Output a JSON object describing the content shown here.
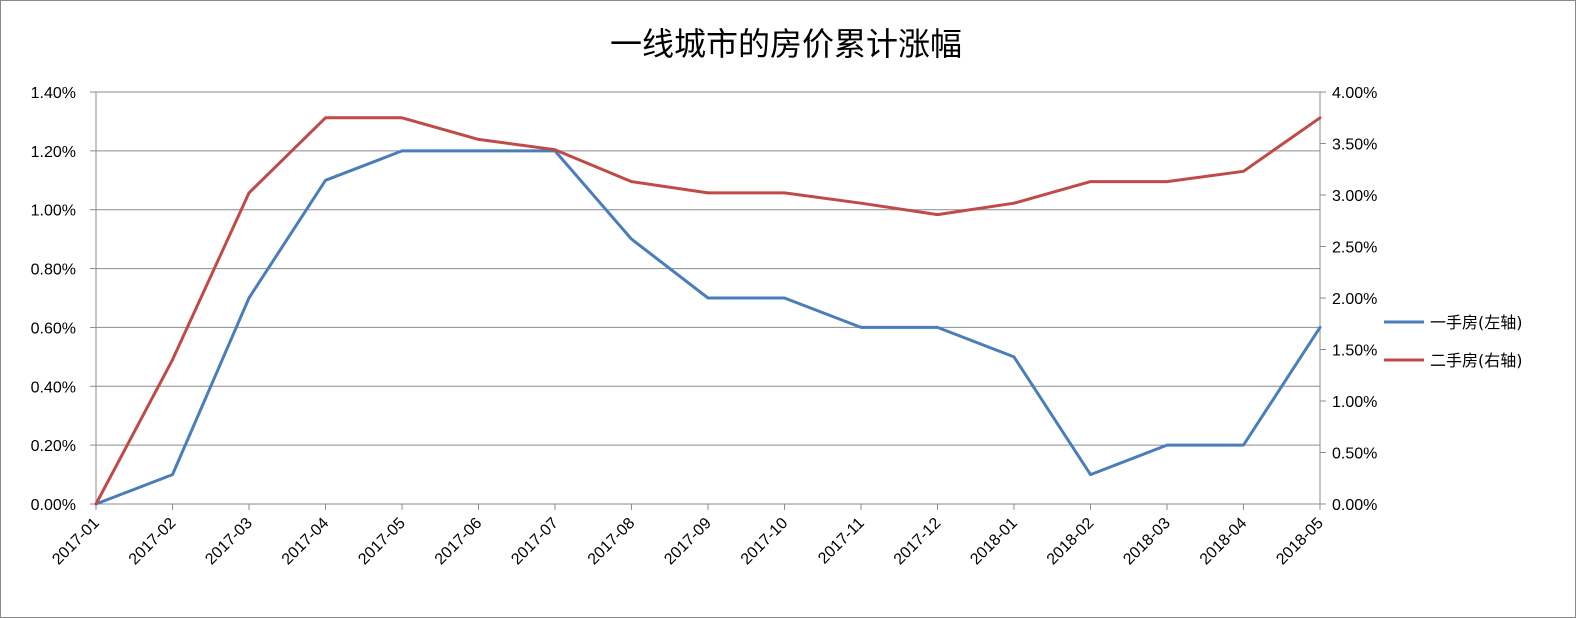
{
  "chart_data": {
    "type": "line",
    "title": "一线城市的房价累计涨幅",
    "categories": [
      "2017-01",
      "2017-02",
      "2017-03",
      "2017-04",
      "2017-05",
      "2017-06",
      "2017-07",
      "2017-08",
      "2017-09",
      "2017-10",
      "2017-11",
      "2017-12",
      "2018-01",
      "2018-02",
      "2018-03",
      "2018-04",
      "2018-05"
    ],
    "y_left": {
      "ylim": [
        0,
        1.4
      ],
      "ticks": [
        "0.00%",
        "0.20%",
        "0.40%",
        "0.60%",
        "0.80%",
        "1.00%",
        "1.20%",
        "1.40%"
      ]
    },
    "y_right": {
      "ylim": [
        0,
        4.0
      ],
      "ticks": [
        "0.00%",
        "0.50%",
        "1.00%",
        "1.50%",
        "2.00%",
        "2.50%",
        "3.00%",
        "3.50%",
        "4.00%"
      ]
    },
    "series": [
      {
        "name": "一手房(左轴)",
        "axis": "left",
        "color": "#4a7ebb",
        "values": [
          0.0,
          0.1,
          0.7,
          1.1,
          1.2,
          1.2,
          1.2,
          0.9,
          0.7,
          0.7,
          0.6,
          0.6,
          0.5,
          0.1,
          0.2,
          0.2,
          0.6
        ]
      },
      {
        "name": "二手房(右轴)",
        "axis": "right",
        "color": "#be4b48",
        "values": [
          0.0,
          1.4,
          3.02,
          3.75,
          3.75,
          3.54,
          3.44,
          3.13,
          3.02,
          3.02,
          2.92,
          2.81,
          2.92,
          3.13,
          3.13,
          3.23,
          3.75
        ]
      }
    ],
    "grid": true,
    "legend": "right"
  }
}
